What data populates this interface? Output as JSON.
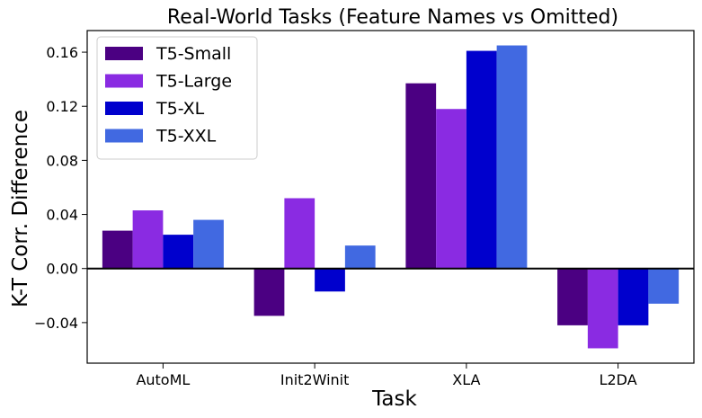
{
  "chart_data": {
    "type": "bar",
    "title": "Real-World Tasks (Feature Names vs Omitted)",
    "xlabel": "Task",
    "ylabel": "K-T Corr. Difference",
    "categories": [
      "AutoML",
      "Init2Winit",
      "XLA",
      "L2DA"
    ],
    "series": [
      {
        "name": "T5-Small",
        "color": "#4b0082",
        "values": [
          0.028,
          -0.035,
          0.137,
          -0.042
        ]
      },
      {
        "name": "T5-Large",
        "color": "#8a2be2",
        "values": [
          0.043,
          0.052,
          0.118,
          -0.059
        ]
      },
      {
        "name": "T5-XL",
        "color": "#0000cd",
        "values": [
          0.025,
          -0.017,
          0.161,
          -0.042
        ]
      },
      {
        "name": "T5-XXL",
        "color": "#4169e1",
        "values": [
          0.036,
          0.017,
          0.165,
          -0.026
        ]
      }
    ],
    "ylim": [
      -0.07,
      0.176
    ],
    "yticks": [
      -0.04,
      0.0,
      0.04,
      0.08,
      0.12,
      0.16
    ],
    "ytick_labels": [
      "−0.04",
      "0.00",
      "0.04",
      "0.08",
      "0.12",
      "0.16"
    ],
    "zero_line": true,
    "grid": false,
    "legend_position": "top-left"
  }
}
